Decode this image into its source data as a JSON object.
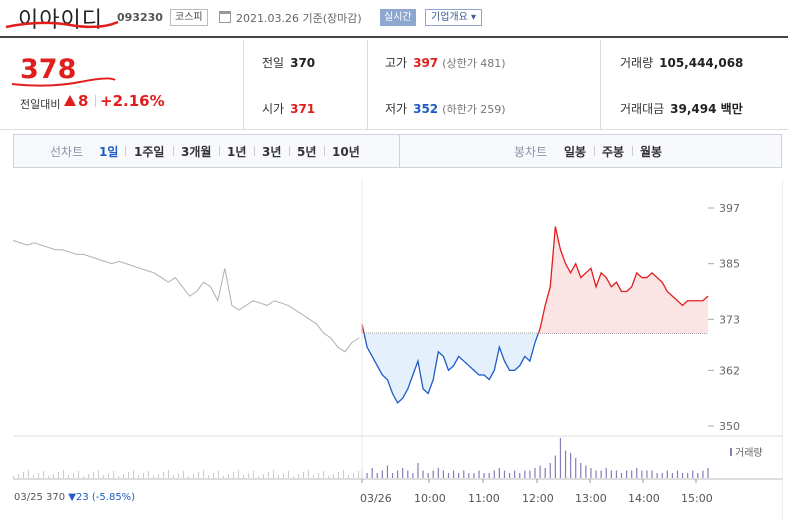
{
  "header": {
    "stock_name": "이아이디",
    "stock_code": "093230",
    "market_badge": "코스피",
    "base_date": "2021.03.26  기준(장마감)",
    "realtime_button": "실시간",
    "overview_button": "기업개요 ▾"
  },
  "quote": {
    "current_price": "378",
    "change_label": "전일대비",
    "change_amount": "8",
    "change_percent": "+2.16%",
    "prev_close_label": "전일",
    "prev_close": "370",
    "open_label": "시가",
    "open": "371",
    "high_label": "고가",
    "high": "397",
    "upper_limit": "(상한가 481)",
    "low_label": "저가",
    "low": "352",
    "lower_limit": "(하한가 259)",
    "volume_label": "거래량",
    "volume": "105,444,068",
    "amount_label": "거래대금",
    "amount": "39,494 백만"
  },
  "tabs": {
    "line_label": "선차트",
    "periods": [
      "1일",
      "1주일",
      "3개월",
      "1년",
      "3년",
      "5년",
      "10년"
    ],
    "active_period": "1일",
    "candle_label": "봉차트",
    "candles": [
      "일봉",
      "주봉",
      "월봉"
    ]
  },
  "footer": {
    "prev_date": "03/25",
    "prev_price": "370",
    "prev_change": "▼23",
    "prev_pct": "(-5.85%)"
  },
  "colors": {
    "up": "#e01e1e",
    "down": "#1e5bc6",
    "up_fill": "#fbe4e4",
    "down_fill": "#e4f0fb",
    "prev_day_line": "#b0b0b0",
    "volume": "#8a7ab8"
  },
  "chart_data": {
    "type": "line",
    "y_ticks": [
      397,
      385,
      373,
      362,
      350
    ],
    "ylim": [
      350,
      397
    ],
    "baseline": 370,
    "x_ticks": [
      "03/26",
      "10:00",
      "11:00",
      "12:00",
      "13:00",
      "14:00",
      "15:00"
    ],
    "volume_legend": "거래량",
    "prev_day_series": [
      390,
      389.5,
      389,
      389.5,
      389,
      388.5,
      388,
      388,
      387.5,
      387,
      387,
      386.5,
      386,
      385.5,
      385,
      385.5,
      385,
      384.5,
      384,
      383.5,
      383,
      382,
      381,
      382,
      380,
      378,
      379,
      381,
      380,
      377,
      384,
      376,
      375,
      376,
      377,
      376.5,
      376,
      377,
      376.5,
      376,
      375,
      374,
      373,
      372,
      370,
      369,
      367,
      366,
      368,
      369
    ],
    "today_series": [
      372,
      367,
      365,
      363,
      361,
      360,
      357,
      355,
      356,
      358,
      361,
      364,
      358,
      357,
      360,
      366,
      365,
      362,
      363,
      365,
      364,
      363,
      362,
      361,
      361,
      360,
      362,
      367,
      364,
      362,
      362,
      363,
      365,
      364,
      368,
      371,
      376,
      380,
      393,
      388,
      385,
      383,
      385,
      382,
      383,
      384,
      380,
      383,
      382,
      380,
      381,
      379,
      379,
      380,
      383,
      382,
      382,
      383,
      382,
      381,
      379,
      378,
      377,
      376,
      377,
      377,
      377,
      377,
      378
    ],
    "today_volume": [
      3,
      2,
      4,
      2,
      3,
      5,
      2,
      3,
      4,
      3,
      2,
      6,
      3,
      2,
      3,
      4,
      3,
      2,
      3,
      2,
      3,
      2,
      2,
      3,
      2,
      2,
      3,
      4,
      3,
      2,
      3,
      2,
      3,
      3,
      4,
      5,
      4,
      6,
      9,
      16,
      11,
      10,
      8,
      6,
      5,
      4,
      3,
      3,
      4,
      3,
      3,
      2,
      3,
      3,
      4,
      3,
      3,
      3,
      2,
      2,
      3,
      2,
      3,
      2,
      2,
      3,
      2,
      3,
      4
    ]
  }
}
